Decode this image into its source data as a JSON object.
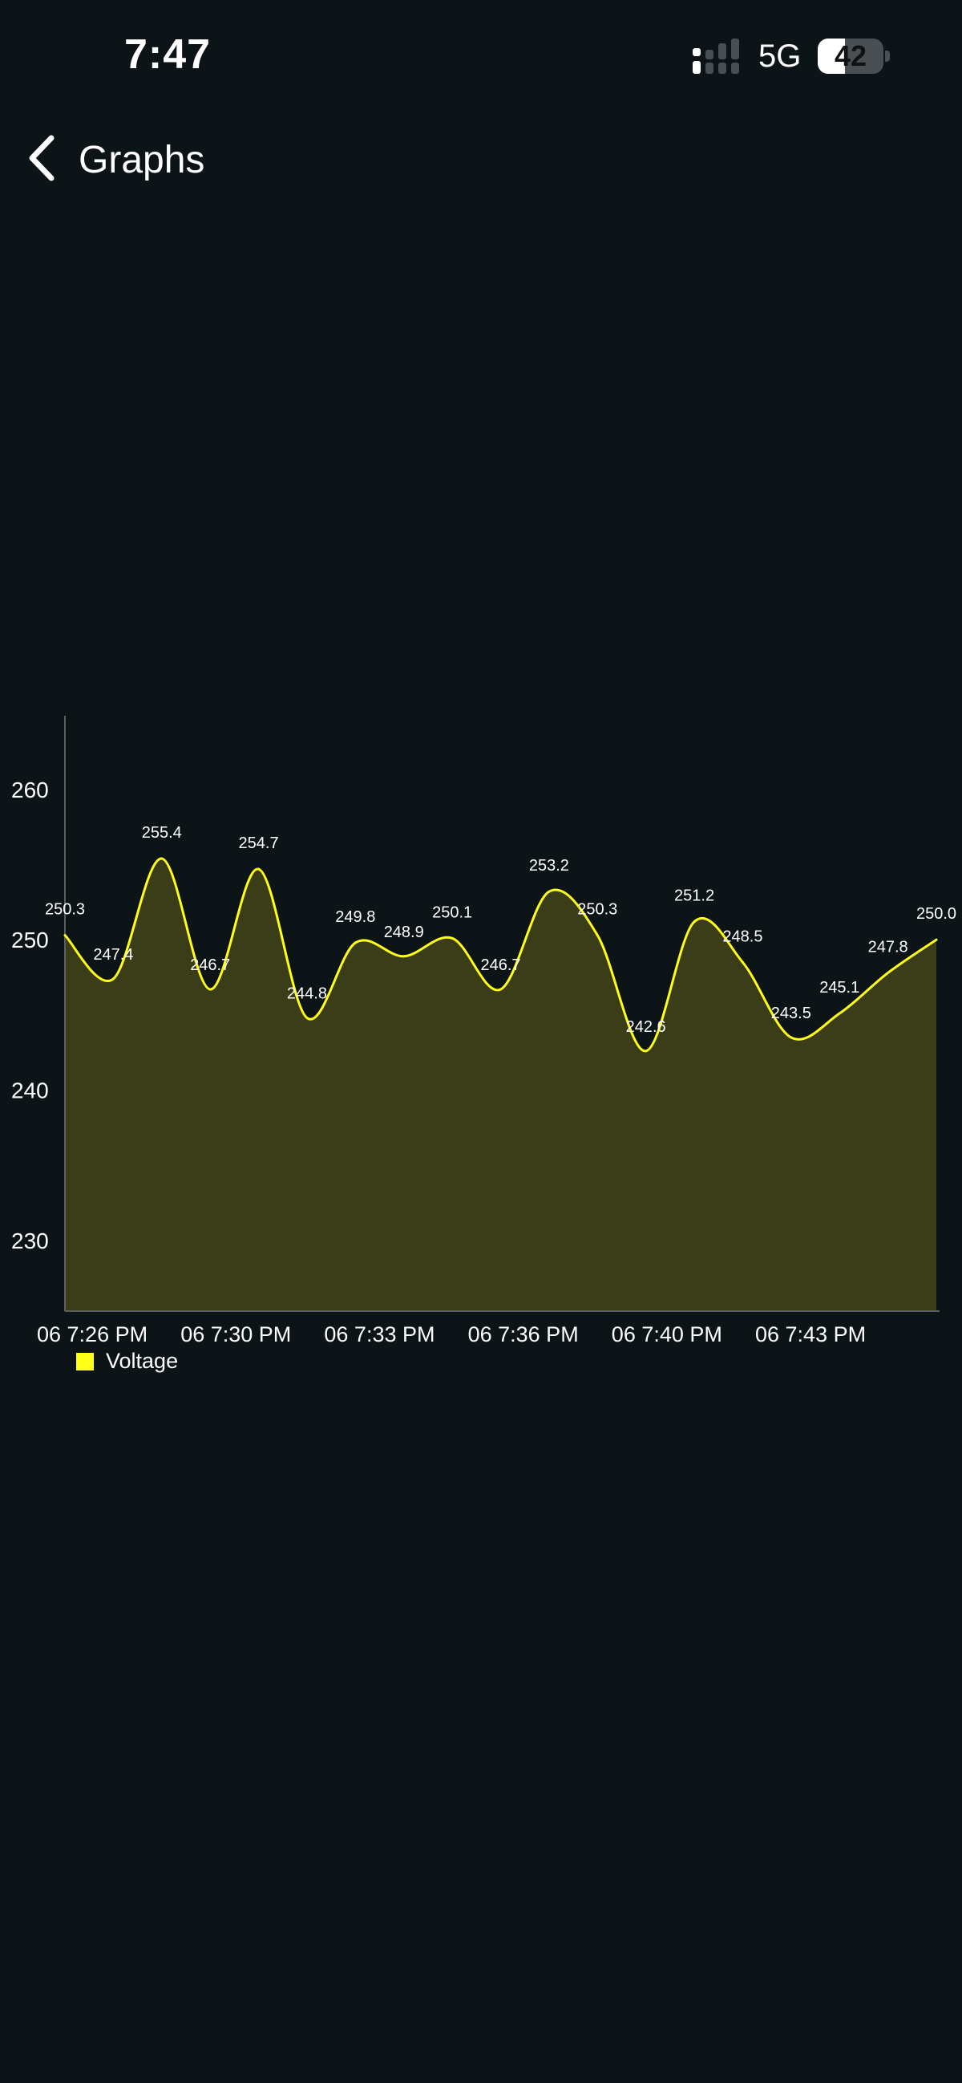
{
  "status_bar": {
    "time": "7:47",
    "network": "5G",
    "battery": "42",
    "battery_fraction": 0.42
  },
  "nav": {
    "back_icon": "chevron-left-icon",
    "title": "Graphs"
  },
  "chart_data": {
    "type": "area",
    "series": [
      {
        "name": "Voltage",
        "color": "#ffff18",
        "fill": "#3a3d18",
        "values": [
          250.3,
          247.4,
          255.4,
          246.7,
          254.7,
          244.8,
          249.8,
          248.9,
          250.1,
          246.7,
          253.2,
          250.3,
          242.6,
          251.2,
          248.5,
          243.5,
          245.1,
          247.8,
          250.0
        ]
      }
    ],
    "x_tick_labels": [
      "06 7:26 PM",
      "06 7:30 PM",
      "06 7:33 PM",
      "06 7:36 PM",
      "06 7:40 PM",
      "06 7:43 PM"
    ],
    "y_ticks": [
      230,
      240,
      250,
      260
    ],
    "ylim": [
      225.3,
      264.9
    ],
    "grid": false,
    "legend_position": "bottom-left",
    "data_labels": true
  }
}
